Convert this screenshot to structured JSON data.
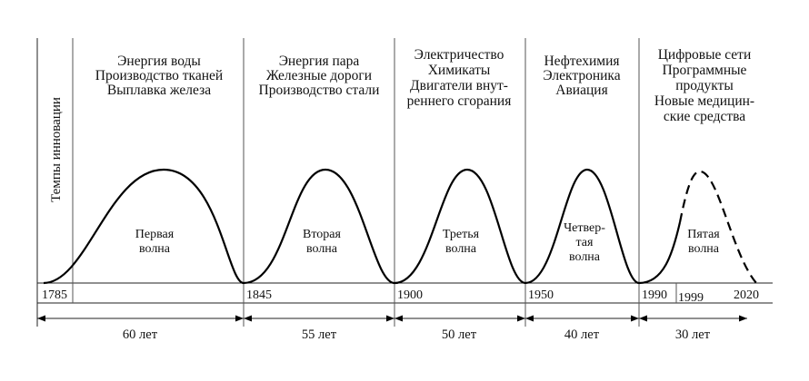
{
  "vertical_label": "Темпы инновации",
  "eras": [
    {
      "lines": [
        "Энергия воды",
        "Производство тканей",
        "Выплавка железа"
      ],
      "wave_lines": [
        "Первая",
        "волна"
      ],
      "start_year": "1785",
      "duration": "60 лет",
      "dashed": false
    },
    {
      "lines": [
        "Энергия пара",
        "Железные дороги",
        "Производство стали"
      ],
      "wave_lines": [
        "Вторая",
        "волна"
      ],
      "start_year": "1845",
      "duration": "55 лет",
      "dashed": false
    },
    {
      "lines": [
        "Электричество",
        "Химикаты",
        "Двигатели внут-",
        "реннего сгорания"
      ],
      "wave_lines": [
        "Третья",
        "волна"
      ],
      "start_year": "1900",
      "duration": "50 лет",
      "dashed": false
    },
    {
      "lines": [
        "Нефтехимия",
        "Электроника",
        "Авиация"
      ],
      "wave_lines": [
        "Четвер-",
        "тая",
        "волна"
      ],
      "start_year": "1950",
      "duration": "40 лет",
      "dashed": false
    },
    {
      "lines": [
        "Цифровые сети",
        "Программные",
        "продукты",
        "Новые медицин-",
        "ские средства"
      ],
      "wave_lines": [
        "Пятая",
        "волна"
      ],
      "start_year": "1990",
      "duration": "30 лет",
      "dashed": true
    }
  ],
  "extra_years": [
    "1999",
    "2020"
  ]
}
